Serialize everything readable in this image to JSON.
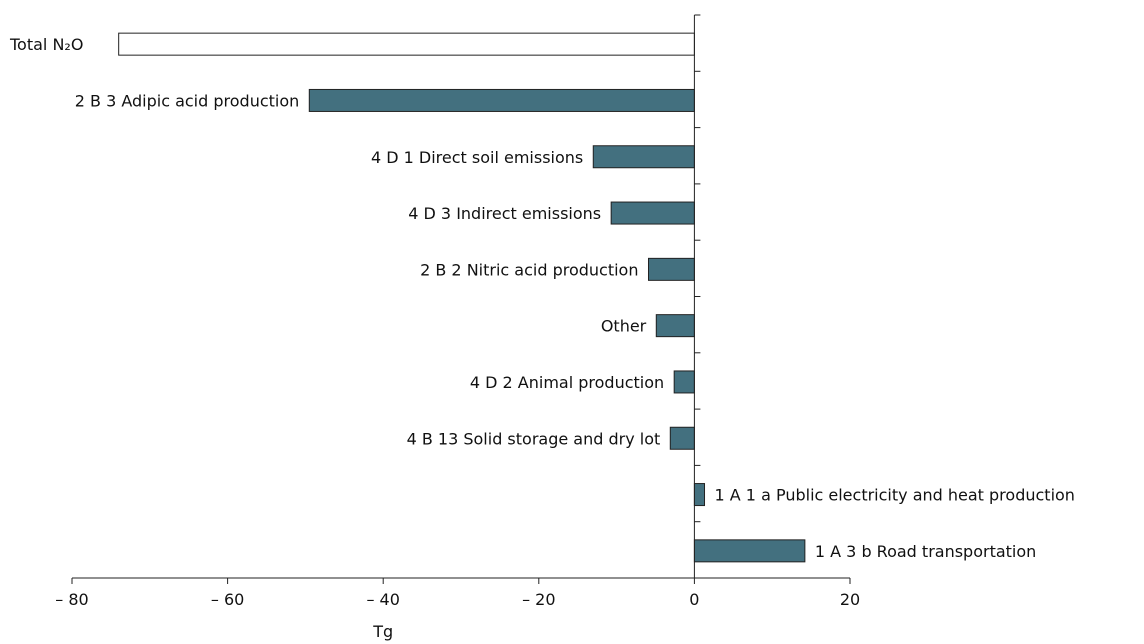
{
  "chart_data": {
    "type": "bar",
    "orientation": "horizontal",
    "xlabel": "Tg",
    "ylabel": "",
    "xlim": [
      -80,
      20
    ],
    "xticks": [
      -80,
      -60,
      -40,
      -20,
      0,
      20
    ],
    "xtick_labels": [
      "– 80",
      "– 60",
      "– 40",
      "– 20",
      "0",
      "20"
    ],
    "bar_color": "#43707f",
    "total_color": "#ffffff",
    "categories": [
      "Total N₂O",
      "2 B 3 Adipic acid production",
      "4 D 1 Direct soil emissions",
      "4 D 3 Indirect emissions",
      "2 B 2 Nitric acid production",
      "Other",
      "4 D 2 Animal production",
      "4 B 13 Solid storage and dry lot",
      "1 A 1 a Public electricity and heat production",
      "1 A 3 b Road transportation"
    ],
    "values": [
      -74,
      -49.5,
      -13,
      -10.7,
      -5.9,
      -4.9,
      -2.6,
      -3.1,
      1.3,
      14.2
    ]
  }
}
